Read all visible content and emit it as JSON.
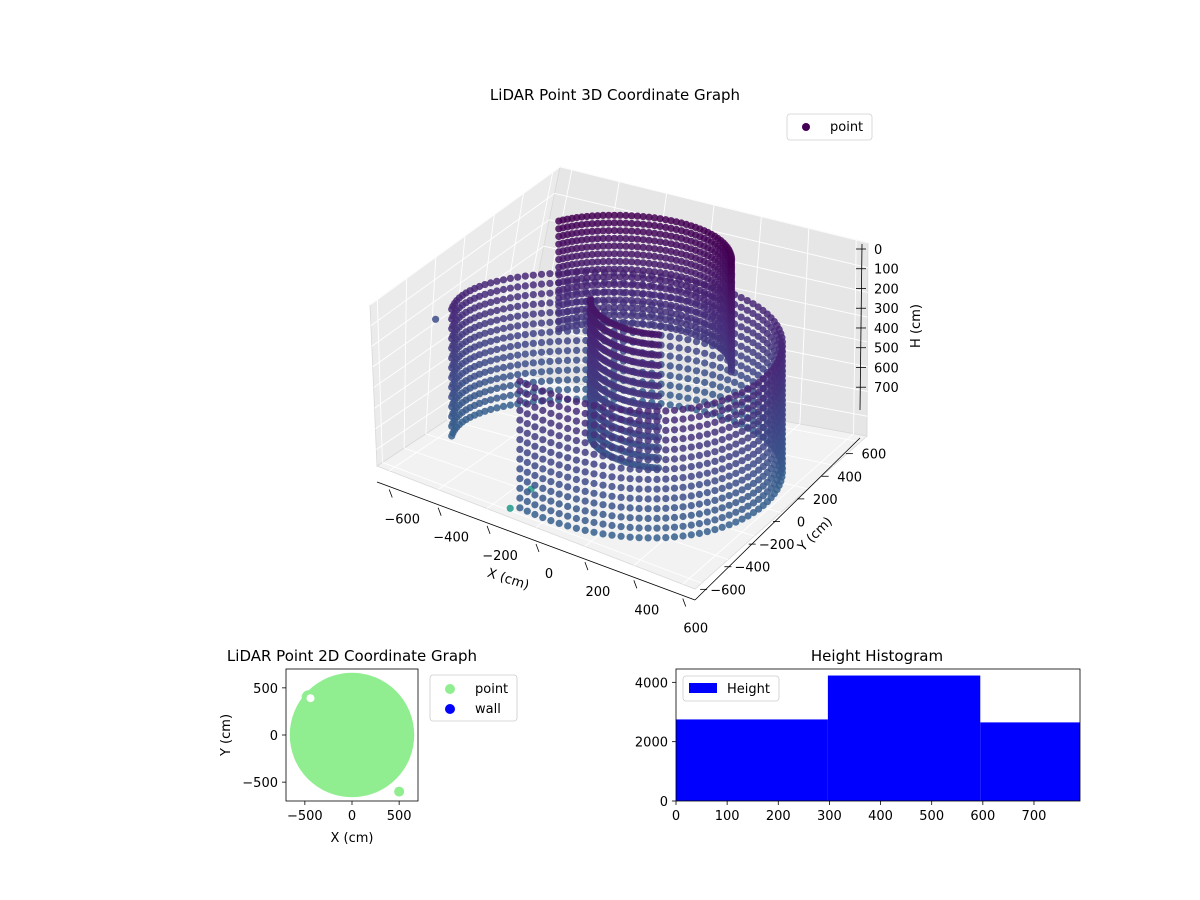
{
  "chart_data": [
    {
      "type": "scatter",
      "projection": "3d",
      "title": "LiDAR Point 3D Coordinate Graph",
      "xlabel": "X (cm)",
      "ylabel": "Y (cm)",
      "zlabel": "H (cm)",
      "x_ticks": [
        -600,
        -400,
        -200,
        0,
        200,
        400,
        600
      ],
      "y_ticks": [
        -600,
        -400,
        -200,
        0,
        200,
        400,
        600
      ],
      "z_ticks": [
        0,
        100,
        200,
        300,
        400,
        500,
        600,
        700
      ],
      "xlim": [
        -650,
        650
      ],
      "ylim": [
        -650,
        650
      ],
      "zlim": [
        0,
        780
      ],
      "z_axis_inverted": true,
      "grid": true,
      "legend": {
        "placement": "upper-right",
        "entries": [
          "point"
        ]
      },
      "colormap": "viridis",
      "series": [
        {
          "name": "point",
          "shape": "cylindrical wall scan",
          "ring_radius_cm": 650,
          "height_range_cm": [
            0,
            780
          ],
          "outliers": [
            {
              "x": -620,
              "y": -180,
              "h": 330
            },
            {
              "x": -150,
              "y": -380,
              "h": 780
            },
            {
              "x": -120,
              "y": -620,
              "h": 760
            }
          ]
        }
      ]
    },
    {
      "type": "scatter",
      "title": "LiDAR Point 2D Coordinate Graph",
      "xlabel": "X (cm)",
      "ylabel": "Y (cm)",
      "x_ticks": [
        -500,
        0,
        500
      ],
      "y_ticks": [
        500,
        0,
        -500
      ],
      "xlim": [
        -700,
        700
      ],
      "ylim": [
        -700,
        700
      ],
      "grid": false,
      "legend": {
        "placement": "outside-right",
        "entries": [
          "point",
          "wall"
        ]
      },
      "series": [
        {
          "name": "point",
          "color": "#90ee90",
          "footprint_radius_cm": 660
        },
        {
          "name": "wall",
          "color": "#0000ff",
          "points": []
        }
      ]
    },
    {
      "type": "bar",
      "title": "Height Histogram",
      "xlabel": "",
      "ylabel": "",
      "x_ticks": [
        0,
        100,
        200,
        300,
        400,
        500,
        600,
        700
      ],
      "y_ticks": [
        0,
        2000,
        4000
      ],
      "xlim": [
        0,
        790
      ],
      "ylim": [
        0,
        4450
      ],
      "grid": false,
      "legend": {
        "placement": "upper-left",
        "entries": [
          "Height"
        ]
      },
      "series": [
        {
          "name": "Height",
          "color": "#0000ff",
          "bins": [
            {
              "from": 0,
              "to": 297,
              "count": 2750
            },
            {
              "from": 297,
              "to": 595,
              "count": 4230
            },
            {
              "from": 595,
              "to": 790,
              "count": 2650
            }
          ]
        }
      ]
    }
  ],
  "colors": {
    "viridis_dark": "#440154",
    "viridis_mid": "#3b528b",
    "viridis_teal": "#21918c",
    "point_green": "#90ee90",
    "wall_blue": "#0000ff",
    "hist_blue": "#0000ff"
  }
}
